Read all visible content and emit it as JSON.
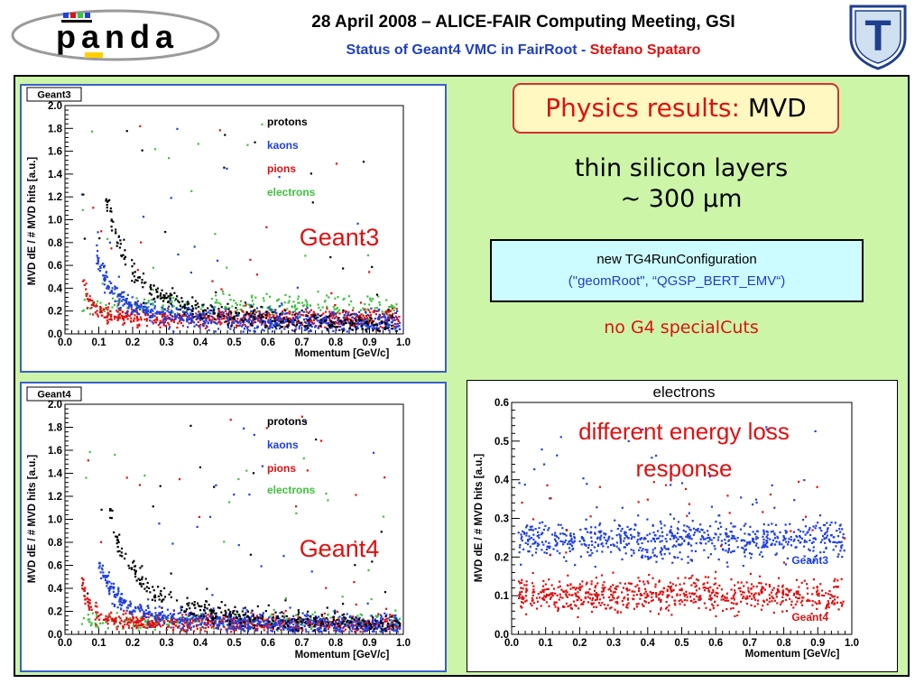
{
  "header": {
    "title": "28 April 2008 – ALICE-FAIR Computing Meeting, GSI",
    "subtitle_main": "Status of Geant4 VMC in FairRoot - ",
    "subtitle_author": "Stefano Spataro",
    "logo_left": "panda",
    "logo_right": "T"
  },
  "right_panel": {
    "physics_label": "Physics results:",
    "physics_detector": "MVD",
    "silicon_line1": "thin silicon layers",
    "silicon_line2": "~ 300 μm",
    "config_line1": "new TG4RunConfiguration",
    "config_line2": "(\"geomRoot\", “QGSP_BERT_EMV“)",
    "no_cuts": "no G4 specialCuts"
  },
  "colors": {
    "protons": "#000000",
    "kaons": "#1f3fe0",
    "pions": "#e01010",
    "electrons": "#40c040",
    "panel_bg": "#ccf5a8"
  },
  "chart_data": [
    {
      "type": "scatter",
      "tag": "Geant3",
      "overlay_label": "Geant3",
      "title": "",
      "xlabel": "Momentum [GeV/c]",
      "ylabel": "MVD dE / # MVD hits [a.u.]",
      "xlim": [
        0,
        1
      ],
      "ylim": [
        0,
        2
      ],
      "xticks": [
        "0.0",
        "0.1",
        "0.2",
        "0.3",
        "0.4",
        "0.5",
        "0.6",
        "0.7",
        "0.8",
        "0.9",
        "1.0"
      ],
      "yticks": [
        "0.0",
        "0.2",
        "0.4",
        "0.6",
        "0.8",
        "1.0",
        "1.2",
        "1.4",
        "1.6",
        "1.8",
        "2.0"
      ],
      "legend_position": "top-right",
      "series": [
        {
          "name": "protons",
          "color": "#000000",
          "curve": {
            "a": 0.036,
            "k": 1.65,
            "b": 0.05,
            "xmin": 0.12,
            "spread": 0.04
          }
        },
        {
          "name": "kaons",
          "color": "#1f3fe0",
          "curve": {
            "a": 0.012,
            "k": 1.65,
            "b": 0.08,
            "xmin": 0.09,
            "spread": 0.04
          }
        },
        {
          "name": "pions",
          "color": "#e01010",
          "curve": {
            "a": 0.0003,
            "k": 2.4,
            "b": 0.13,
            "xmin": 0.05,
            "spread": 0.035
          }
        },
        {
          "name": "electrons",
          "color": "#40c040",
          "curve": {
            "a": 0.0,
            "k": 1.0,
            "b": 0.25,
            "xmin": 0.05,
            "spread": 0.04
          }
        }
      ]
    },
    {
      "type": "scatter",
      "tag": "Geant4",
      "overlay_label": "Geant4",
      "title": "",
      "xlabel": "Momentum [GeV/c]",
      "ylabel": "MVD dE / # MVD hits [a.u.]",
      "xlim": [
        0,
        1
      ],
      "ylim": [
        0,
        2
      ],
      "xticks": [
        "0.0",
        "0.1",
        "0.2",
        "0.3",
        "0.4",
        "0.5",
        "0.6",
        "0.7",
        "0.8",
        "0.9",
        "1.0"
      ],
      "yticks": [
        "0.0",
        "0.2",
        "0.4",
        "0.6",
        "0.8",
        "1.0",
        "1.2",
        "1.4",
        "1.6",
        "1.8",
        "2.0"
      ],
      "legend_position": "top-right",
      "series": [
        {
          "name": "protons",
          "color": "#000000",
          "curve": {
            "a": 0.036,
            "k": 1.65,
            "b": 0.05,
            "xmin": 0.13,
            "spread": 0.035
          }
        },
        {
          "name": "kaons",
          "color": "#1f3fe0",
          "curve": {
            "a": 0.012,
            "k": 1.65,
            "b": 0.07,
            "xmin": 0.1,
            "spread": 0.035
          }
        },
        {
          "name": "pions",
          "color": "#e01010",
          "curve": {
            "a": 0.0003,
            "k": 2.4,
            "b": 0.09,
            "xmin": 0.05,
            "spread": 0.03
          }
        },
        {
          "name": "electrons",
          "color": "#40c040",
          "curve": {
            "a": 0.0,
            "k": 1.0,
            "b": 0.11,
            "xmin": 0.05,
            "spread": 0.03
          }
        }
      ]
    },
    {
      "type": "scatter",
      "title": "electrons",
      "overlay_label_line1": "different energy loss",
      "overlay_label_line2": "response",
      "xlabel": "Momentum [GeV/c]",
      "ylabel": "MVD dE / # MVD hits [a.u.]",
      "xlim": [
        0,
        1
      ],
      "ylim": [
        0,
        0.6
      ],
      "xticks": [
        "0.0",
        "0.1",
        "0.2",
        "0.3",
        "0.4",
        "0.5",
        "0.6",
        "0.7",
        "0.8",
        "0.9",
        "1.0"
      ],
      "yticks": [
        "0.0",
        "0.1",
        "0.2",
        "0.3",
        "0.4",
        "0.5",
        "0.6"
      ],
      "series": [
        {
          "name": "Geant3",
          "color": "#1f3fe0",
          "mean": 0.245,
          "spread": 0.025
        },
        {
          "name": "Geant4",
          "color": "#e01010",
          "mean": 0.1,
          "spread": 0.022
        }
      ]
    }
  ]
}
